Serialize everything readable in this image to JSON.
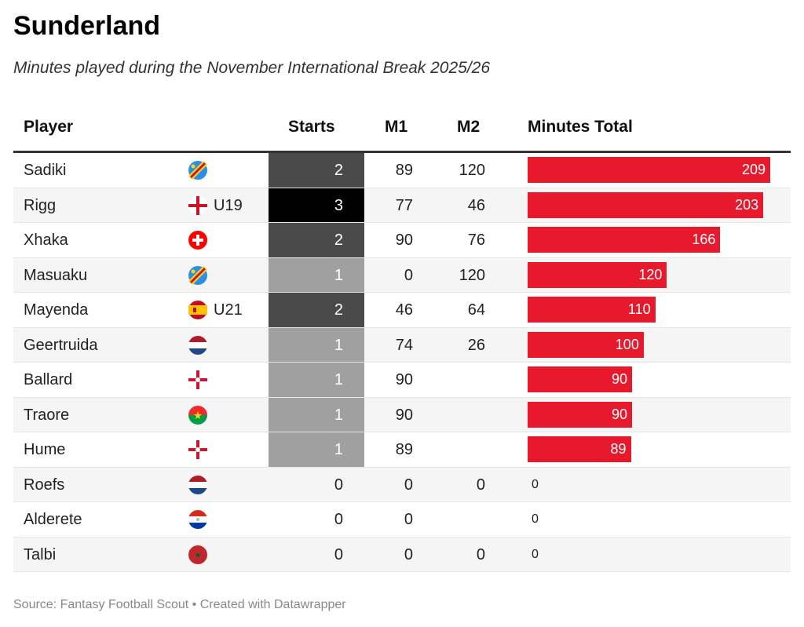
{
  "title": "Sunderland",
  "subtitle": "Minutes played during the November International Break 2025/26",
  "source": "Source: Fantasy Football Scout • Created with Datawrapper",
  "colors": {
    "bar": "#e8192c",
    "starts_3": "#000000",
    "starts_2": "#4a4a4a",
    "starts_1": "#a0a0a0"
  },
  "chart_data": {
    "type": "table",
    "columns": [
      "Player",
      "Starts",
      "M1",
      "M2",
      "Minutes Total"
    ],
    "rows": [
      {
        "player": "Sadiki",
        "flag": "dr-congo",
        "tag": "",
        "starts": "2",
        "m1": "89",
        "m2": "120",
        "total": "209"
      },
      {
        "player": "Rigg",
        "flag": "england",
        "tag": "U19",
        "starts": "3",
        "m1": "77",
        "m2": "46",
        "total": "203"
      },
      {
        "player": "Xhaka",
        "flag": "switzerland",
        "tag": "",
        "starts": "2",
        "m1": "90",
        "m2": "76",
        "total": "166"
      },
      {
        "player": "Masuaku",
        "flag": "dr-congo",
        "tag": "",
        "starts": "1",
        "m1": "0",
        "m2": "120",
        "total": "120"
      },
      {
        "player": "Mayenda",
        "flag": "spain",
        "tag": "U21",
        "starts": "2",
        "m1": "46",
        "m2": "64",
        "total": "110"
      },
      {
        "player": "Geertruida",
        "flag": "netherlands",
        "tag": "",
        "starts": "1",
        "m1": "74",
        "m2": "26",
        "total": "100"
      },
      {
        "player": "Ballard",
        "flag": "northern-ireland",
        "tag": "",
        "starts": "1",
        "m1": "90",
        "m2": "",
        "total": "90"
      },
      {
        "player": "Traore",
        "flag": "burkina-faso",
        "tag": "",
        "starts": "1",
        "m1": "90",
        "m2": "",
        "total": "90"
      },
      {
        "player": "Hume",
        "flag": "northern-ireland",
        "tag": "",
        "starts": "1",
        "m1": "89",
        "m2": "",
        "total": "89"
      },
      {
        "player": "Roefs",
        "flag": "netherlands",
        "tag": "",
        "starts": "0",
        "m1": "0",
        "m2": "0",
        "total": "0"
      },
      {
        "player": "Alderete",
        "flag": "paraguay",
        "tag": "",
        "starts": "0",
        "m1": "0",
        "m2": "",
        "total": "0"
      },
      {
        "player": "Talbi",
        "flag": "morocco",
        "tag": "",
        "starts": "0",
        "m1": "0",
        "m2": "0",
        "total": "0"
      }
    ]
  }
}
